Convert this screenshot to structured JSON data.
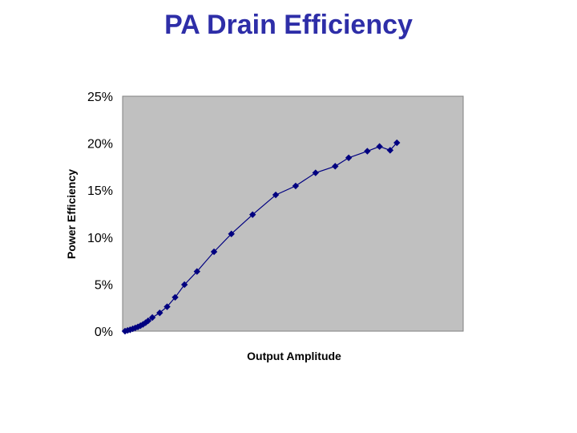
{
  "slide": {
    "title": "PA Drain Efficiency"
  },
  "colors": {
    "plot_bg": "#c0c0c0",
    "series": "#000080",
    "title": "#2e2ea8"
  },
  "chart_data": {
    "type": "line",
    "xlabel": "Output Amplitude",
    "ylabel": "Power Efficiency",
    "ylim": [
      0,
      0.25
    ],
    "yticks": [
      {
        "value": 0,
        "label": "0%"
      },
      {
        "value": 0.05,
        "label": "5%"
      },
      {
        "value": 0.1,
        "label": "10%"
      },
      {
        "value": 0.15,
        "label": "15%"
      },
      {
        "value": 0.2,
        "label": "20%"
      },
      {
        "value": 0.25,
        "label": "25%"
      }
    ],
    "xlim": [
      0,
      1
    ],
    "grid": false,
    "legend": "none",
    "series": [
      {
        "marker": "diamond",
        "x": [
          0.0,
          0.008,
          0.016,
          0.024,
          0.032,
          0.04,
          0.048,
          0.056,
          0.064,
          0.072,
          0.085,
          0.108,
          0.131,
          0.156,
          0.185,
          0.224,
          0.277,
          0.331,
          0.397,
          0.469,
          0.531,
          0.593,
          0.654,
          0.696,
          0.754,
          0.792,
          0.825,
          0.846
        ],
        "y": [
          0.0,
          0.0008,
          0.0015,
          0.0025,
          0.0035,
          0.0045,
          0.0058,
          0.0072,
          0.009,
          0.011,
          0.0145,
          0.0195,
          0.026,
          0.036,
          0.0495,
          0.0635,
          0.0845,
          0.1035,
          0.124,
          0.145,
          0.1545,
          0.1685,
          0.1755,
          0.1845,
          0.1915,
          0.1965,
          0.1925,
          0.2005
        ]
      }
    ]
  }
}
